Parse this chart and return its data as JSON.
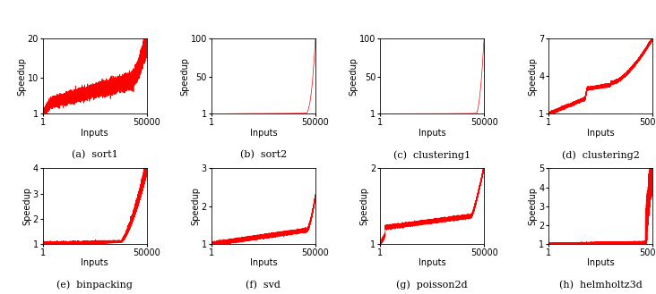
{
  "subplots": [
    {
      "label": "(a)  sort1",
      "ylim": [
        1,
        20
      ],
      "yticks": [
        1,
        10,
        20
      ],
      "curve_type": "sort1"
    },
    {
      "label": "(b)  sort2",
      "ylim": [
        1,
        100
      ],
      "yticks": [
        1,
        50,
        100
      ],
      "curve_type": "sort2"
    },
    {
      "label": "(c)  clustering1",
      "ylim": [
        1,
        100
      ],
      "yticks": [
        1,
        50,
        100
      ],
      "curve_type": "clustering1"
    },
    {
      "label": "(d)  clustering2",
      "ylim": [
        1,
        7
      ],
      "yticks": [
        1,
        4,
        7
      ],
      "curve_type": "clustering2"
    },
    {
      "label": "(e)  binpacking",
      "ylim": [
        1,
        4
      ],
      "yticks": [
        1,
        2,
        3,
        4
      ],
      "curve_type": "binpacking"
    },
    {
      "label": "(f)  svd",
      "ylim": [
        1,
        3
      ],
      "yticks": [
        1,
        2,
        3
      ],
      "curve_type": "svd"
    },
    {
      "label": "(g)  poisson2d",
      "ylim": [
        1,
        2
      ],
      "yticks": [
        1,
        2
      ],
      "curve_type": "poisson2d"
    },
    {
      "label": "(h)  helmholtz3d",
      "ylim": [
        1,
        5
      ],
      "yticks": [
        1,
        2,
        3,
        4,
        5
      ],
      "curve_type": "helmholtz3d"
    }
  ],
  "n_inputs": 50000,
  "line_color": "#FF0000",
  "line_width": 0.5,
  "xlabel": "Inputs",
  "ylabel": "Speedup",
  "xticks": [
    1,
    50000
  ],
  "xticklabels": [
    "1",
    "50000"
  ],
  "bg_color": "#ffffff",
  "label_fontsize": 8,
  "tick_fontsize": 7,
  "axis_label_fontsize": 7
}
